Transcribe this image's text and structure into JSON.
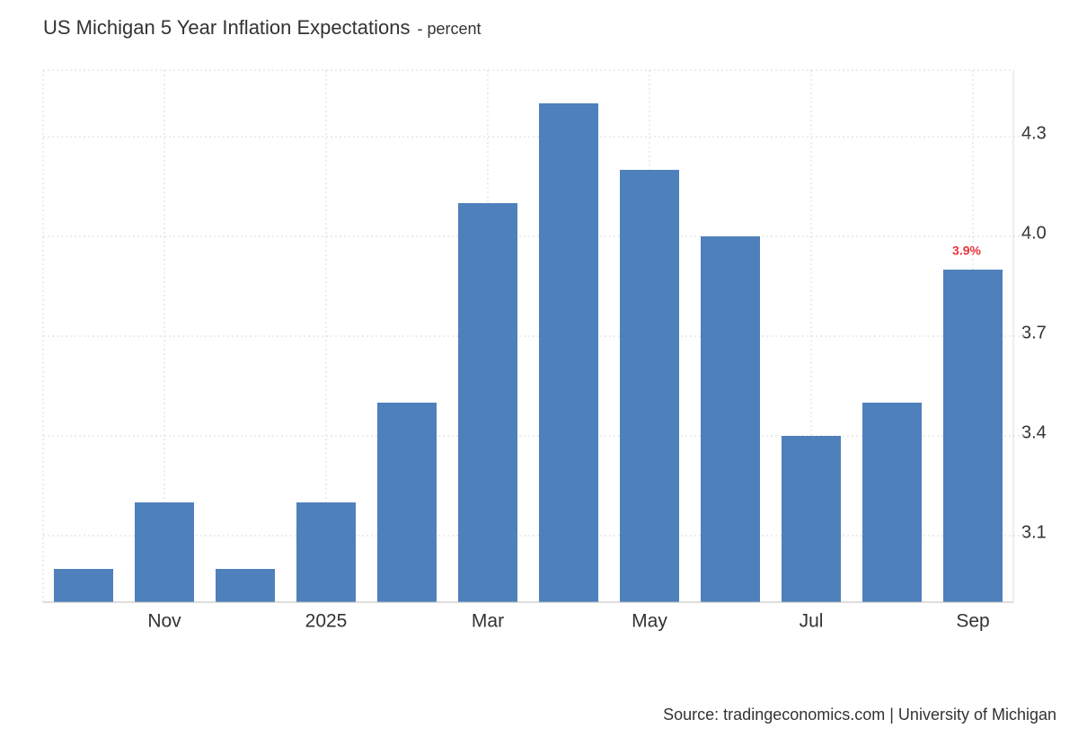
{
  "chart_data": {
    "type": "bar",
    "title": "US Michigan 5 Year Inflation Expectations",
    "subtitle": "- percent",
    "source": "Source: tradingeconomics.com | University of Michigan",
    "categories": [
      null,
      "Nov",
      null,
      "2025",
      null,
      "Mar",
      null,
      "May",
      null,
      "Jul",
      null,
      "Sep"
    ],
    "values": [
      3.0,
      3.2,
      3.0,
      3.2,
      3.5,
      4.1,
      4.4,
      4.2,
      4.0,
      3.4,
      3.5,
      3.9
    ],
    "value_labels": [
      null,
      null,
      null,
      null,
      null,
      null,
      null,
      null,
      null,
      null,
      null,
      "3.9%"
    ],
    "color": "#4e80bc",
    "label_color": "#e8333a",
    "ylim": [
      2.9,
      4.5
    ],
    "yticks": [
      3.1,
      3.4,
      3.7,
      {
        "value": 4,
        "label": "4.0"
      },
      4.3
    ],
    "grid": true
  }
}
